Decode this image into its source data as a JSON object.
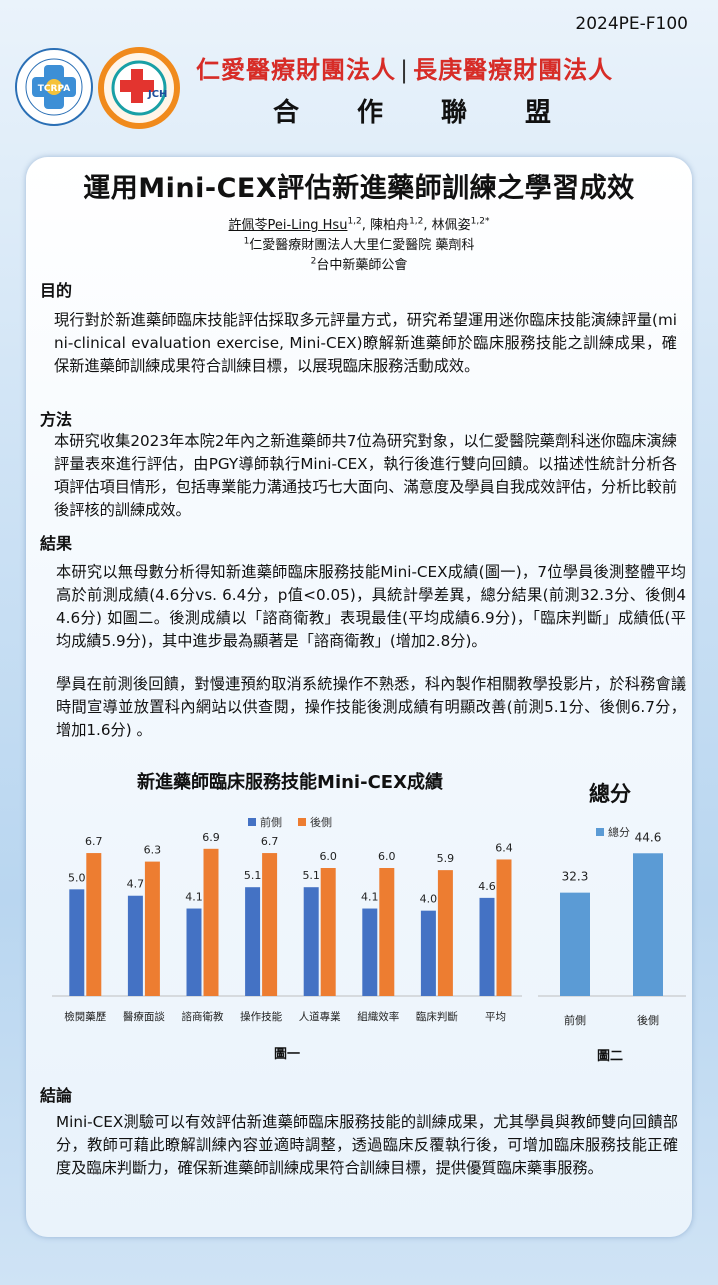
{
  "header": {
    "code": "2024PE-F100",
    "org_left": "仁愛醫療財團法人",
    "org_sep": "|",
    "org_right": "長庚醫療財團法人",
    "alliance": "合作聯盟",
    "logo1_text": "TCRPA",
    "logo2_text": "JCH"
  },
  "title": "運用Mini-CEX評估新進藥師訓練之學習成效",
  "authors": {
    "a1": "許佩苓Pei-Ling Hsu",
    "a1_sup": "1,2",
    "a2": "陳柏舟",
    "a2_sup": "1,2",
    "a3": "林佩姿",
    "a3_sup": "1,2*",
    "aff1_sup": "1",
    "aff1": "仁愛醫療財團法人大里仁愛醫院 藥劑科",
    "aff2_sup": "2",
    "aff2": "台中新藥師公會"
  },
  "sections": {
    "purpose_h": "目的",
    "purpose": "現行對於新進藥師臨床技能評估採取多元評量方式，研究希望運用迷你臨床技能演練評量(mini-clinical evaluation exercise, Mini-CEX)瞭解新進藥師於臨床服務技能之訓練成果，確保新進藥師訓練成果符合訓練目標，以展現臨床服務活動成效。",
    "method_h": "方法",
    "method": "本研究收集2023年本院2年內之新進藥師共7位為研究對象，以仁愛醫院藥劑科迷你臨床演練評量表來進行評估，由PGY導師執行Mini-CEX，執行後進行雙向回饋。以描述性統計分析各項評估項目情形，包括專業能力溝通技巧七大面向、滿意度及學員自我成效評估，分析比較前後評核的訓練成效。",
    "result_h": "結果",
    "result1": "本研究以無母數分析得知新進藥師臨床服務技能Mini-CEX成績(圖一)，7位學員後測整體平均高於前測成績(4.6分vs. 6.4分，p值<0.05)，具統計學差異，總分結果(前測32.3分、後側44.6分) 如圖二。後測成績以「諮商衛教」表現最佳(平均成績6.9分)，「臨床判斷」成績低(平均成績5.9分)，其中進步最為顯著是「諮商衛教」(增加2.8分)。",
    "result2": "學員在前測後回饋，對慢連預約取消系統操作不熟悉，科內製作相關教學投影片，於科務會議時間宣導並放置科內網站以供查閱，操作技能後測成績有明顯改善(前測5.1分、後側6.7分，增加1.6分) 。",
    "conclusion_h": "結論",
    "conclusion": "Mini-CEX測驗可以有效評估新進藥師臨床服務技能的訓練成果，尤其學員與教師雙向回饋部分，教師可藉此瞭解訓練內容並適時調整，透過臨床反覆執行後，可增加臨床服務技能正確度及臨床判斷力，確保新進藥師訓練成果符合訓練目標，提供優質臨床藥事服務。"
  },
  "chart_data": [
    {
      "type": "bar",
      "title": "新進藥師臨床服務技能Mini-CEX成績",
      "categories": [
        "檢閱藥歷",
        "醫療面談",
        "諮商衛教",
        "操作技能",
        "人道專業",
        "組織效率",
        "臨床判斷",
        "平均"
      ],
      "series": [
        {
          "name": "前側",
          "values": [
            5.0,
            4.7,
            4.1,
            5.1,
            5.1,
            4.1,
            4.0,
            4.6
          ],
          "color": "#4472c4"
        },
        {
          "name": "後側",
          "values": [
            6.7,
            6.3,
            6.9,
            6.7,
            6.0,
            6.0,
            5.9,
            6.4
          ],
          "color": "#ed7d31"
        }
      ],
      "value_labels": {
        "前側": [
          "5.0",
          "4.7",
          "4.1",
          "5.1",
          "5.1",
          "4.1",
          "4.0",
          "4.6"
        ],
        "後側": [
          "6.7",
          "6.3",
          "6.9",
          "6.7",
          "6.0",
          "6.0",
          "5.9",
          "6.4"
        ]
      },
      "ylim": [
        0,
        7.5
      ],
      "legend": "top",
      "grid": false,
      "caption": "圖一"
    },
    {
      "type": "bar",
      "title": "總分",
      "categories": [
        "前側",
        "後側"
      ],
      "series": [
        {
          "name": "總分",
          "values": [
            32.3,
            44.6
          ],
          "color": "#5b9bd5"
        }
      ],
      "value_labels": [
        "32.3",
        "44.6"
      ],
      "ylim": [
        0,
        50
      ],
      "legend": "top",
      "grid": false,
      "caption": "圖二"
    }
  ]
}
